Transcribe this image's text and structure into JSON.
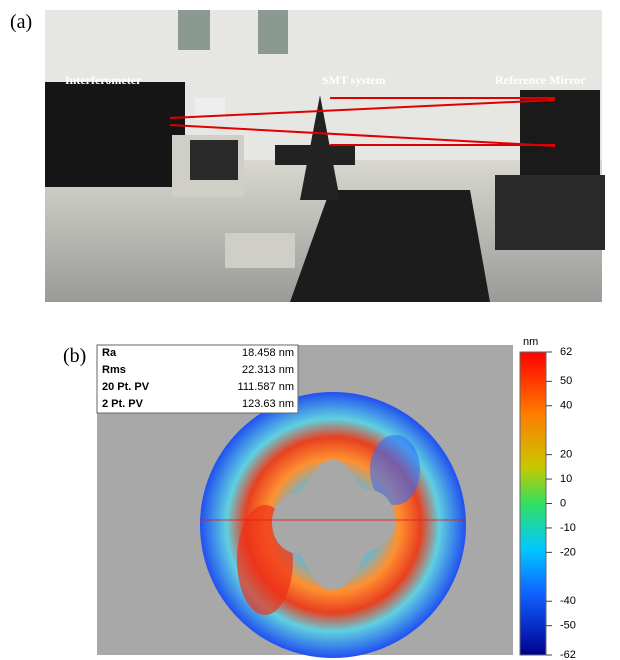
{
  "panel_a": {
    "label": "(a)",
    "annotations": [
      "Interferometer",
      "SMT system",
      "Reference Mirror"
    ]
  },
  "panel_b": {
    "label": "(b)",
    "stats": [
      [
        "Ra",
        "18.458 nm"
      ],
      [
        "Rms",
        "22.313 nm"
      ],
      [
        "20 Pt. PV",
        "111.587 nm"
      ],
      [
        "2 Pt. PV",
        "123.63 nm"
      ]
    ],
    "colorbar": {
      "unit": "nm",
      "lim": [
        -62,
        62
      ],
      "ticks": [
        62,
        50,
        40,
        20,
        10,
        0,
        -10,
        -20,
        -40,
        -50,
        -62
      ]
    }
  }
}
